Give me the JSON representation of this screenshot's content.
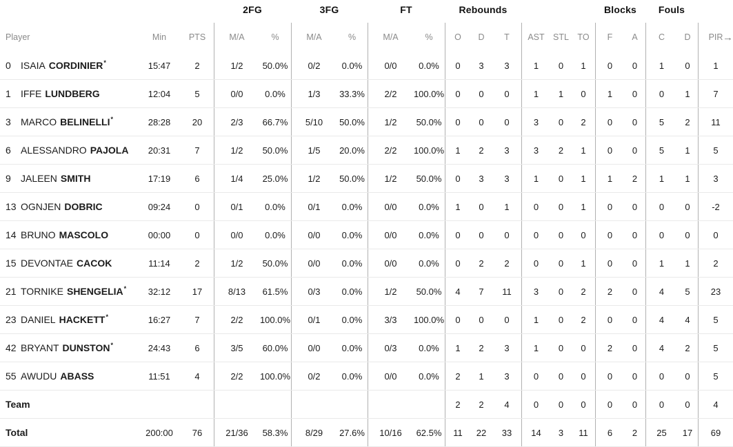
{
  "colors": {
    "background": "#ffffff",
    "text": "#1b1b1b",
    "muted_header": "#8a8a8a",
    "row_line": "#e9e9e9",
    "divider": "#b0b0b0"
  },
  "table": {
    "group_headers": [
      {
        "label": "2FG"
      },
      {
        "label": "3FG"
      },
      {
        "label": "FT"
      },
      {
        "label": "Rebounds"
      },
      {
        "label": "Blocks"
      },
      {
        "label": "Fouls"
      }
    ],
    "column_headers": {
      "player": "Player",
      "min": "Min",
      "pts": "PTS",
      "ma": "M/A",
      "pct": "%",
      "o": "O",
      "d": "D",
      "t": "T",
      "ast": "AST",
      "stl": "STL",
      "to": "TO",
      "f": "F",
      "a": "A",
      "c": "C",
      "fouls_d": "D",
      "pir": "PIR"
    },
    "scroll_icon": "→",
    "starter_mark": "*",
    "rows": [
      {
        "num": "0",
        "first": "ISAIA",
        "last": "CORDINIER",
        "starter": true,
        "min": "15:47",
        "pts": "2",
        "fg2": "1/2",
        "fg2p": "50.0%",
        "fg3": "0/2",
        "fg3p": "0.0%",
        "ft": "0/0",
        "ftp": "0.0%",
        "o": "0",
        "d": "3",
        "t": "3",
        "ast": "1",
        "stl": "0",
        "to": "1",
        "bf": "0",
        "ba": "0",
        "fc": "1",
        "fd": "0",
        "pir": "1"
      },
      {
        "num": "1",
        "first": "IFFE",
        "last": "LUNDBERG",
        "starter": false,
        "min": "12:04",
        "pts": "5",
        "fg2": "0/0",
        "fg2p": "0.0%",
        "fg3": "1/3",
        "fg3p": "33.3%",
        "ft": "2/2",
        "ftp": "100.0%",
        "o": "0",
        "d": "0",
        "t": "0",
        "ast": "1",
        "stl": "1",
        "to": "0",
        "bf": "1",
        "ba": "0",
        "fc": "0",
        "fd": "1",
        "pir": "7"
      },
      {
        "num": "3",
        "first": "MARCO",
        "last": "BELINELLI",
        "starter": true,
        "min": "28:28",
        "pts": "20",
        "fg2": "2/3",
        "fg2p": "66.7%",
        "fg3": "5/10",
        "fg3p": "50.0%",
        "ft": "1/2",
        "ftp": "50.0%",
        "o": "0",
        "d": "0",
        "t": "0",
        "ast": "3",
        "stl": "0",
        "to": "2",
        "bf": "0",
        "ba": "0",
        "fc": "5",
        "fd": "2",
        "pir": "11"
      },
      {
        "num": "6",
        "first": "ALESSANDRO",
        "last": "PAJOLA",
        "starter": false,
        "min": "20:31",
        "pts": "7",
        "fg2": "1/2",
        "fg2p": "50.0%",
        "fg3": "1/5",
        "fg3p": "20.0%",
        "ft": "2/2",
        "ftp": "100.0%",
        "o": "1",
        "d": "2",
        "t": "3",
        "ast": "3",
        "stl": "2",
        "to": "1",
        "bf": "0",
        "ba": "0",
        "fc": "5",
        "fd": "1",
        "pir": "5"
      },
      {
        "num": "9",
        "first": "JALEEN",
        "last": "SMITH",
        "starter": false,
        "min": "17:19",
        "pts": "6",
        "fg2": "1/4",
        "fg2p": "25.0%",
        "fg3": "1/2",
        "fg3p": "50.0%",
        "ft": "1/2",
        "ftp": "50.0%",
        "o": "0",
        "d": "3",
        "t": "3",
        "ast": "1",
        "stl": "0",
        "to": "1",
        "bf": "1",
        "ba": "2",
        "fc": "1",
        "fd": "1",
        "pir": "3"
      },
      {
        "num": "13",
        "first": "OGNJEN",
        "last": "DOBRIC",
        "starter": false,
        "min": "09:24",
        "pts": "0",
        "fg2": "0/1",
        "fg2p": "0.0%",
        "fg3": "0/1",
        "fg3p": "0.0%",
        "ft": "0/0",
        "ftp": "0.0%",
        "o": "1",
        "d": "0",
        "t": "1",
        "ast": "0",
        "stl": "0",
        "to": "1",
        "bf": "0",
        "ba": "0",
        "fc": "0",
        "fd": "0",
        "pir": "-2"
      },
      {
        "num": "14",
        "first": "BRUNO",
        "last": "MASCOLO",
        "starter": false,
        "min": "00:00",
        "pts": "0",
        "fg2": "0/0",
        "fg2p": "0.0%",
        "fg3": "0/0",
        "fg3p": "0.0%",
        "ft": "0/0",
        "ftp": "0.0%",
        "o": "0",
        "d": "0",
        "t": "0",
        "ast": "0",
        "stl": "0",
        "to": "0",
        "bf": "0",
        "ba": "0",
        "fc": "0",
        "fd": "0",
        "pir": "0"
      },
      {
        "num": "15",
        "first": "DEVONTAE",
        "last": "CACOK",
        "starter": false,
        "min": "11:14",
        "pts": "2",
        "fg2": "1/2",
        "fg2p": "50.0%",
        "fg3": "0/0",
        "fg3p": "0.0%",
        "ft": "0/0",
        "ftp": "0.0%",
        "o": "0",
        "d": "2",
        "t": "2",
        "ast": "0",
        "stl": "0",
        "to": "1",
        "bf": "0",
        "ba": "0",
        "fc": "1",
        "fd": "1",
        "pir": "2"
      },
      {
        "num": "21",
        "first": "TORNIKE",
        "last": "SHENGELIA",
        "starter": true,
        "min": "32:12",
        "pts": "17",
        "fg2": "8/13",
        "fg2p": "61.5%",
        "fg3": "0/3",
        "fg3p": "0.0%",
        "ft": "1/2",
        "ftp": "50.0%",
        "o": "4",
        "d": "7",
        "t": "11",
        "ast": "3",
        "stl": "0",
        "to": "2",
        "bf": "2",
        "ba": "0",
        "fc": "4",
        "fd": "5",
        "pir": "23"
      },
      {
        "num": "23",
        "first": "DANIEL",
        "last": "HACKETT",
        "starter": true,
        "min": "16:27",
        "pts": "7",
        "fg2": "2/2",
        "fg2p": "100.0%",
        "fg3": "0/1",
        "fg3p": "0.0%",
        "ft": "3/3",
        "ftp": "100.0%",
        "o": "0",
        "d": "0",
        "t": "0",
        "ast": "1",
        "stl": "0",
        "to": "2",
        "bf": "0",
        "ba": "0",
        "fc": "4",
        "fd": "4",
        "pir": "5"
      },
      {
        "num": "42",
        "first": "BRYANT",
        "last": "DUNSTON",
        "starter": true,
        "min": "24:43",
        "pts": "6",
        "fg2": "3/5",
        "fg2p": "60.0%",
        "fg3": "0/0",
        "fg3p": "0.0%",
        "ft": "0/3",
        "ftp": "0.0%",
        "o": "1",
        "d": "2",
        "t": "3",
        "ast": "1",
        "stl": "0",
        "to": "0",
        "bf": "2",
        "ba": "0",
        "fc": "4",
        "fd": "2",
        "pir": "5"
      },
      {
        "num": "55",
        "first": "AWUDU",
        "last": "ABASS",
        "starter": false,
        "min": "11:51",
        "pts": "4",
        "fg2": "2/2",
        "fg2p": "100.0%",
        "fg3": "0/2",
        "fg3p": "0.0%",
        "ft": "0/0",
        "ftp": "0.0%",
        "o": "2",
        "d": "1",
        "t": "3",
        "ast": "0",
        "stl": "0",
        "to": "0",
        "bf": "0",
        "ba": "0",
        "fc": "0",
        "fd": "0",
        "pir": "5"
      }
    ],
    "team_row": {
      "label": "Team",
      "min": "",
      "pts": "",
      "fg2": "",
      "fg2p": "",
      "fg3": "",
      "fg3p": "",
      "ft": "",
      "ftp": "",
      "o": "2",
      "d": "2",
      "t": "4",
      "ast": "0",
      "stl": "0",
      "to": "0",
      "bf": "0",
      "ba": "0",
      "fc": "0",
      "fd": "0",
      "pir": "4"
    },
    "total_row": {
      "label": "Total",
      "min": "200:00",
      "pts": "76",
      "fg2": "21/36",
      "fg2p": "58.3%",
      "fg3": "8/29",
      "fg3p": "27.6%",
      "ft": "10/16",
      "ftp": "62.5%",
      "o": "11",
      "d": "22",
      "t": "33",
      "ast": "14",
      "stl": "3",
      "to": "11",
      "bf": "6",
      "ba": "2",
      "fc": "25",
      "fd": "17",
      "pir": "69"
    }
  }
}
